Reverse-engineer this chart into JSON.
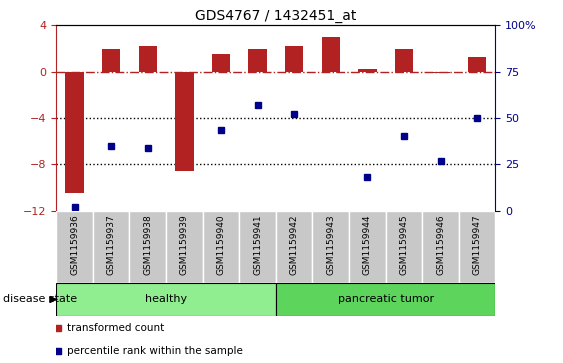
{
  "title": "GDS4767 / 1432451_at",
  "samples": [
    "GSM1159936",
    "GSM1159937",
    "GSM1159938",
    "GSM1159939",
    "GSM1159940",
    "GSM1159941",
    "GSM1159942",
    "GSM1159943",
    "GSM1159944",
    "GSM1159945",
    "GSM1159946",
    "GSM1159947"
  ],
  "bar_values": [
    -10.5,
    2.0,
    2.2,
    -8.6,
    1.5,
    2.0,
    2.2,
    3.0,
    0.2,
    2.0,
    -0.1,
    1.3
  ],
  "dot_values": [
    2.0,
    35.0,
    34.0,
    null,
    43.5,
    57.0,
    52.0,
    null,
    18.0,
    40.0,
    27.0,
    50.0
  ],
  "ylim_left": [
    -12,
    4
  ],
  "ylim_right": [
    0,
    100
  ],
  "bar_color": "#B22222",
  "dot_color": "#00008B",
  "hline_color": "#B22222",
  "dotline_y": [
    -4,
    -8
  ],
  "groups": [
    {
      "label": "healthy",
      "start": 0,
      "end": 6,
      "color": "#90EE90"
    },
    {
      "label": "pancreatic tumor",
      "start": 6,
      "end": 12,
      "color": "#5DD55D"
    }
  ],
  "group_label_prefix": "disease state",
  "legend": [
    {
      "label": "transformed count",
      "color": "#B22222"
    },
    {
      "label": "percentile rank within the sample",
      "color": "#00008B"
    }
  ],
  "sample_box_color": "#C8C8C8",
  "background_color": "#FFFFFF"
}
